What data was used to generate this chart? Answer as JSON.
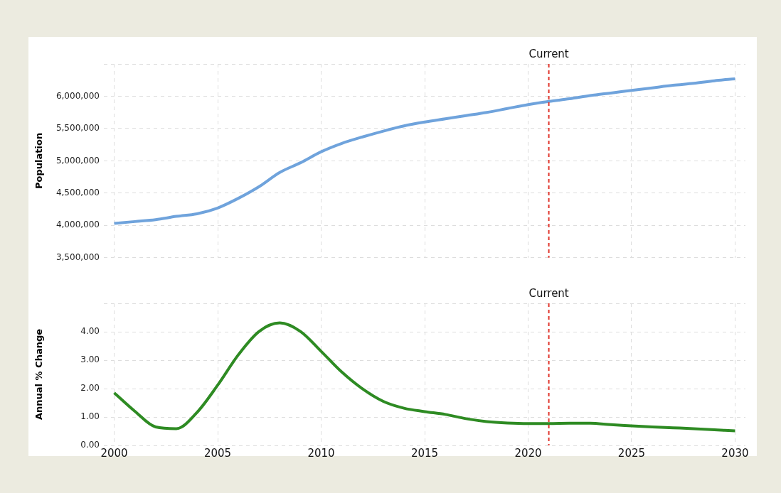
{
  "chart_data": [
    {
      "type": "line",
      "ylabel": "Population",
      "xlim": [
        1999.5,
        2030.5
      ],
      "xticks": [
        2000,
        2005,
        2010,
        2015,
        2020,
        2025,
        2030
      ],
      "ylim": [
        3500000,
        6500000
      ],
      "yticks": [
        {
          "value": 3500000,
          "label": "3,500,000"
        },
        {
          "value": 4000000,
          "label": "4,000,000"
        },
        {
          "value": 4500000,
          "label": "4,500,000"
        },
        {
          "value": 5000000,
          "label": "5,000,000"
        },
        {
          "value": 5500000,
          "label": "5,500,000"
        },
        {
          "value": 6000000,
          "label": "6,000,000"
        },
        {
          "value": 6500000,
          "label": null
        }
      ],
      "tick_labels": "y",
      "grid": true,
      "marker": "none",
      "line_style": "solid",
      "ref_lines": [
        {
          "axis": "x",
          "value": 2021,
          "label": "Current",
          "color": "#e0352b",
          "line_style": "dashed"
        }
      ],
      "series": [
        {
          "color": "#6fa3dc",
          "x": [
            2000,
            2001,
            2002,
            2003,
            2004,
            2005,
            2006,
            2007,
            2008,
            2009,
            2010,
            2011,
            2012,
            2013,
            2014,
            2015,
            2016,
            2017,
            2018,
            2019,
            2020,
            2021,
            2022,
            2023,
            2024,
            2025,
            2026,
            2027,
            2028,
            2029,
            2030
          ],
          "values": [
            4030000,
            4060000,
            4090000,
            4140000,
            4180000,
            4270000,
            4420000,
            4600000,
            4820000,
            4970000,
            5140000,
            5270000,
            5370000,
            5460000,
            5540000,
            5600000,
            5650000,
            5700000,
            5750000,
            5810000,
            5870000,
            5920000,
            5960000,
            6010000,
            6050000,
            6090000,
            6130000,
            6170000,
            6200000,
            6240000,
            6270000
          ]
        }
      ]
    },
    {
      "type": "line",
      "ylabel": "Annual % Change",
      "xlim": [
        1999.5,
        2030.5
      ],
      "xticks": [
        2000,
        2005,
        2010,
        2015,
        2020,
        2025,
        2030
      ],
      "ylim": [
        0,
        5
      ],
      "yticks": [
        {
          "value": 0,
          "label": "0.00"
        },
        {
          "value": 1,
          "label": "1.00"
        },
        {
          "value": 2,
          "label": "2.00"
        },
        {
          "value": 3,
          "label": "3.00"
        },
        {
          "value": 4,
          "label": "4.00"
        },
        {
          "value": 5,
          "label": null
        }
      ],
      "grid": true,
      "marker": "none",
      "line_style": "solid",
      "ref_lines": [
        {
          "axis": "x",
          "value": 2021,
          "label": "Current",
          "color": "#e0352b",
          "line_style": "dashed"
        }
      ],
      "series": [
        {
          "color": "#2e8b23",
          "x": [
            2000,
            2001,
            2002,
            2003,
            2004,
            2005,
            2006,
            2007,
            2008,
            2009,
            2010,
            2011,
            2012,
            2013,
            2014,
            2015,
            2016,
            2017,
            2018,
            2019,
            2020,
            2021,
            2022,
            2023,
            2024,
            2025,
            2026,
            2027,
            2028,
            2029,
            2030
          ],
          "values": [
            1.85,
            1.2,
            0.65,
            0.59,
            1.16,
            2.12,
            3.19,
            4.01,
            4.31,
            4.01,
            3.31,
            2.58,
            1.99,
            1.55,
            1.31,
            1.19,
            1.09,
            0.94,
            0.84,
            0.79,
            0.77,
            0.77,
            0.78,
            0.78,
            0.73,
            0.69,
            0.65,
            0.62,
            0.59,
            0.55,
            0.51
          ]
        }
      ]
    }
  ]
}
